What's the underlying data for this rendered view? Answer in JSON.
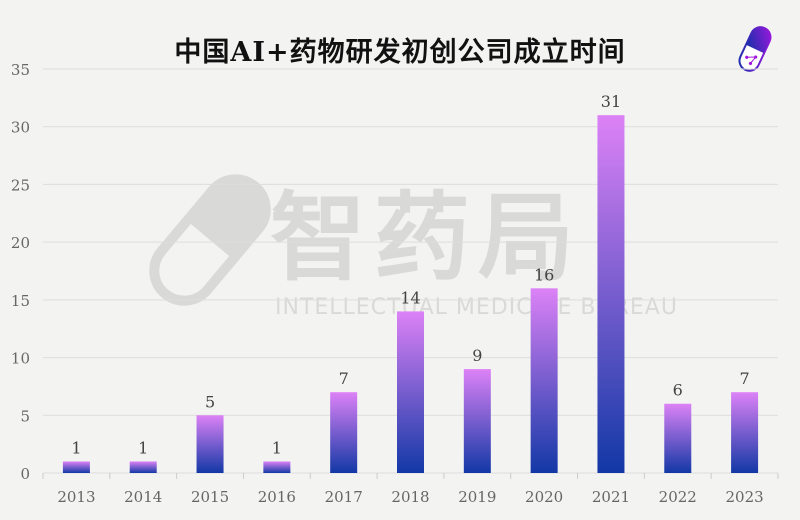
{
  "chart_data": {
    "type": "bar",
    "title": "中国AI+药物研发初创公司成立时间",
    "categories": [
      "2013",
      "2014",
      "2015",
      "2016",
      "2017",
      "2018",
      "2019",
      "2020",
      "2021",
      "2022",
      "2023"
    ],
    "values": [
      1,
      1,
      5,
      1,
      7,
      14,
      9,
      16,
      31,
      6,
      7
    ],
    "xlabel": "",
    "ylabel": "",
    "ylim": [
      0,
      35
    ],
    "yticks": [
      0,
      5,
      10,
      15,
      20,
      25,
      30,
      35
    ],
    "grid": true,
    "legend": "none",
    "colors": {
      "bar_top": "#dc82f6",
      "bar_bottom": "#1238a6",
      "grid": "#dddddd"
    }
  },
  "watermark": {
    "cn": "智药局",
    "en": "INTELLECTUAL MEDICINE BUREAU"
  }
}
